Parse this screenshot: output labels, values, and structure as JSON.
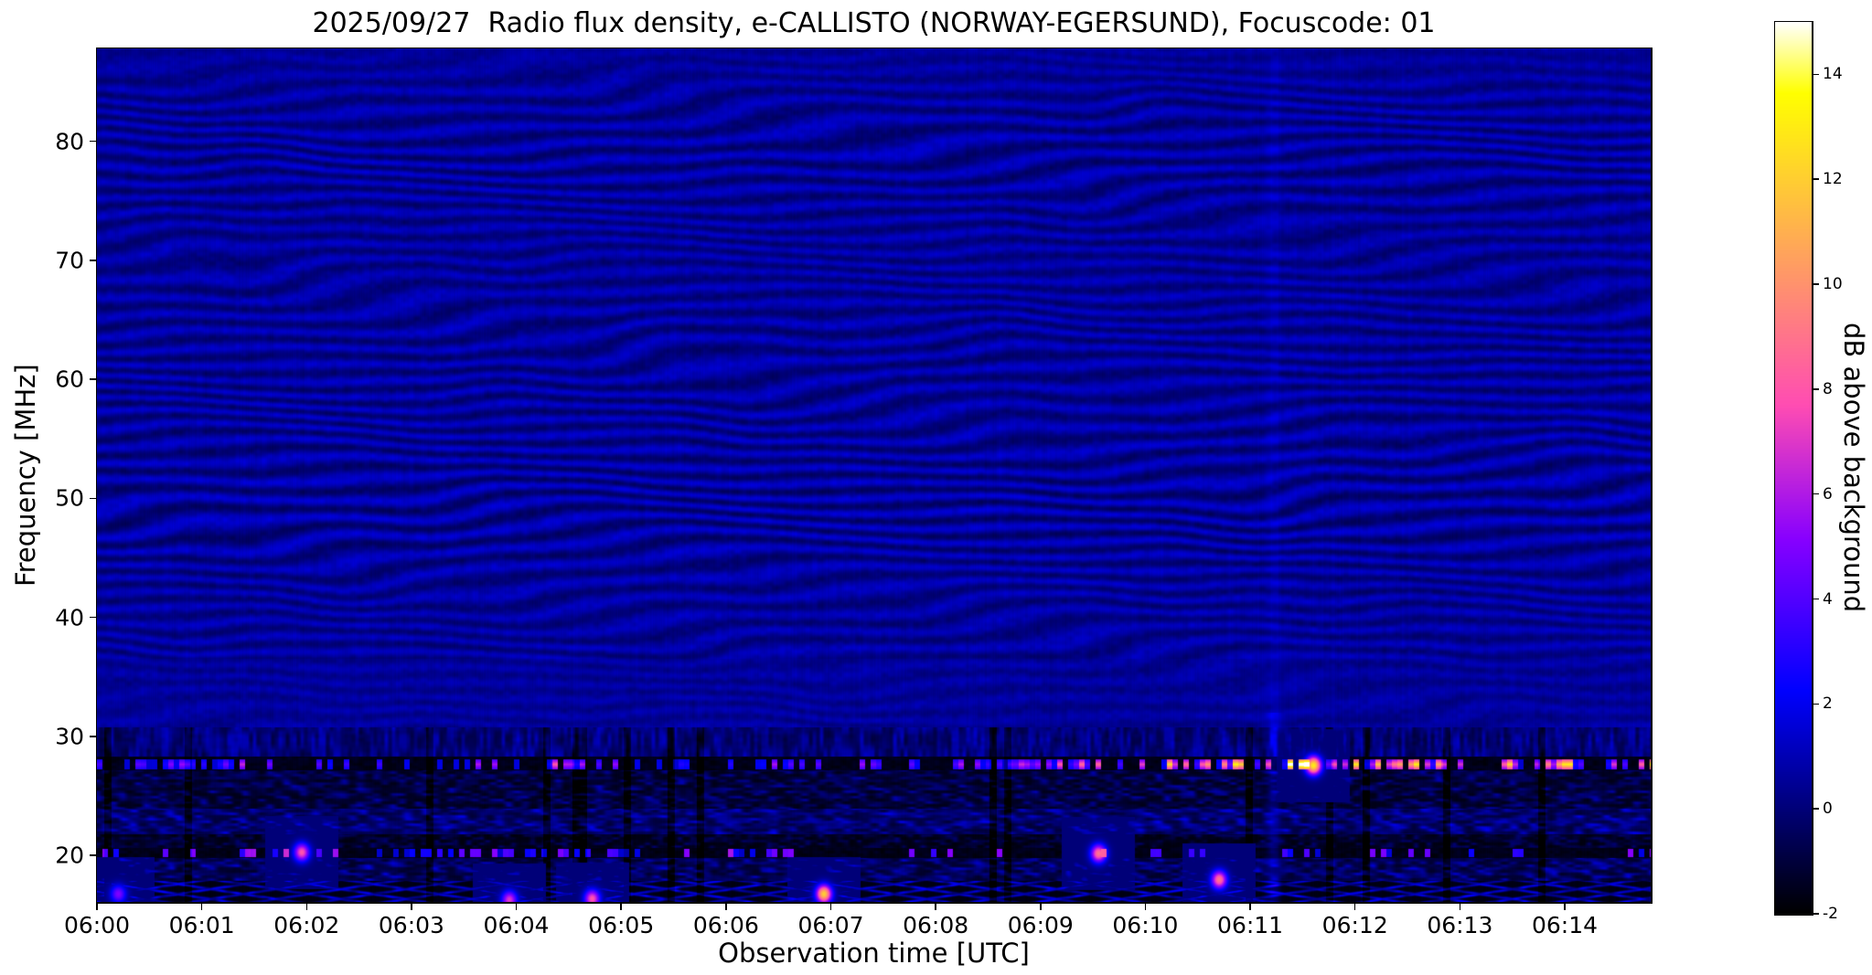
{
  "chart_data": {
    "type": "heatmap",
    "subtype": "radio_spectrogram",
    "title": "2025/09/27  Radio flux density, e-CALLISTO (NORWAY-EGERSUND), Focuscode: 01",
    "date": "2025/09/27",
    "instrument": "e-CALLISTO (NORWAY-EGERSUND)",
    "focuscode": "01",
    "xlabel": "Observation time [UTC]",
    "ylabel": "Frequency [MHz]",
    "x_ticks": [
      "06:00",
      "06:01",
      "06:02",
      "06:03",
      "06:04",
      "06:05",
      "06:06",
      "06:07",
      "06:08",
      "06:09",
      "06:10",
      "06:11",
      "06:12",
      "06:13",
      "06:14"
    ],
    "x_span_minutes": 14.82,
    "y_ticks": [
      20,
      30,
      40,
      50,
      60,
      70,
      80
    ],
    "ylim_mhz": [
      16.1,
      87.8
    ],
    "colorbar": {
      "label": "dB above background",
      "ticks": [
        -2,
        0,
        2,
        4,
        6,
        8,
        10,
        12,
        14
      ],
      "range_db": [
        -2,
        15
      ],
      "colormap": "gnuplot2-like: black - blue - violet - magenta - pink - orange - yellow - white"
    },
    "content_features": [
      "Whole plot dominated by wavy fringe-like broadband interference ripples (alternating dark / bright blue bands of roughly -1 to +2 dB) covering ~30-88 MHz for the full 15 minutes",
      "Ripple contrast strongest near 45-55 MHz and 75-80 MHz; smoother near 84-88 MHz and 31-36 MHz",
      "Dark/black RFI band near 26.5-28.5 MHz containing a dotted row of bright magenta/pink speckles at ~27.6 MHz, intensifying after 06:09 with a yellow-white cluster near 06:11-06:12",
      "Mottled dashed blue RFI bands between 21 and 26.5 MHz",
      "Narrow black band at ~20-21 MHz with sparse bright blue/pink speckles (e.g. near 06:02 and 06:09.5)",
      "Bottom band 16-18 MHz shows a diagonal zigzag pattern of bright blue dashes with isolated hot spots (orange blob near 06:07 at ~17 MHz, pink blob near 06:10.7 at ~18 MHz)",
      "Faint bright vertical streak across the lower band near 06:11.3"
    ],
    "bright_points": [
      {
        "t_min": 6.93,
        "freq_mhz": 16.8,
        "db": 12,
        "note": "orange-yellow hot spot"
      },
      {
        "t_min": 10.7,
        "freq_mhz": 18.0,
        "db": 9,
        "note": "pink hot spot"
      },
      {
        "t_min": 4.72,
        "freq_mhz": 16.4,
        "db": 8,
        "note": "pink hot spot"
      },
      {
        "t_min": 3.93,
        "freq_mhz": 16.3,
        "db": 7,
        "note": "pink hot spot"
      },
      {
        "t_min": 1.95,
        "freq_mhz": 20.3,
        "db": 8,
        "note": "pink speckle"
      },
      {
        "t_min": 9.55,
        "freq_mhz": 20.2,
        "db": 9,
        "note": "pink speckle"
      },
      {
        "t_min": 11.6,
        "freq_mhz": 27.6,
        "db": 13,
        "note": "yellow speckle cluster"
      },
      {
        "t_min": 0.2,
        "freq_mhz": 16.8,
        "db": 5,
        "note": "bright blue patch"
      }
    ]
  }
}
